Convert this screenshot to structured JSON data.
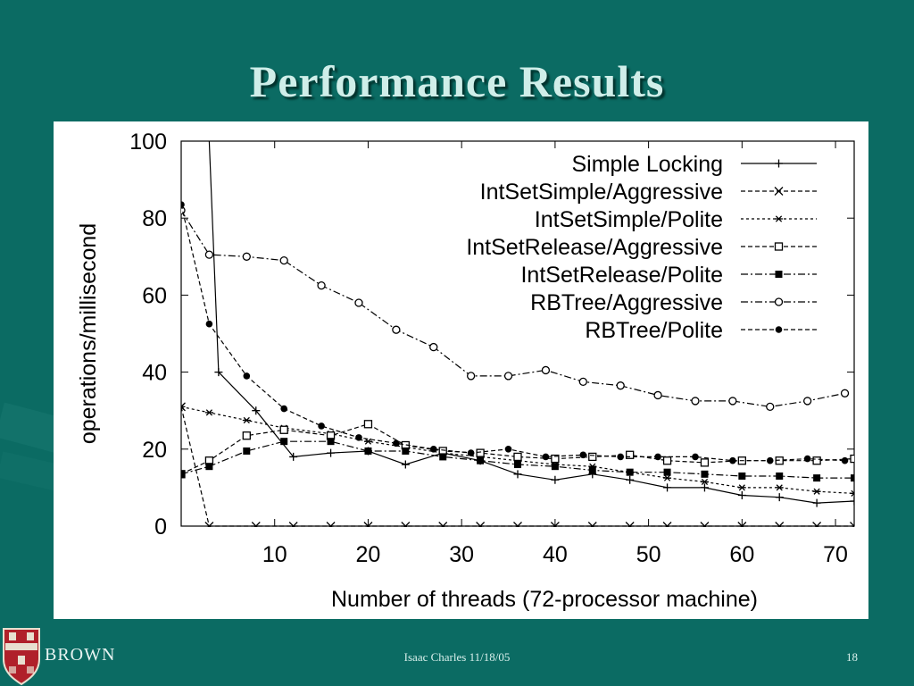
{
  "slide": {
    "title": "Performance Results",
    "footer_center": "Isaac Charles 11/18/05",
    "footer_page": "18",
    "logo_text": "BROWN"
  },
  "colors": {
    "background": "#0b6b63",
    "title": "#cfeee9",
    "chart_bg": "#ffffff",
    "ink": "#000000"
  },
  "chart_data": {
    "type": "line",
    "title": "",
    "xlabel": "Number of threads (72-processor machine)",
    "ylabel": "operations/millisecond",
    "xlim": [
      0,
      72
    ],
    "ylim": [
      0,
      100
    ],
    "xticks": [
      10,
      20,
      30,
      40,
      50,
      60,
      70
    ],
    "yticks": [
      0,
      20,
      40,
      60,
      80,
      100
    ],
    "grid": false,
    "legend_position": "top-right",
    "series": [
      {
        "name": "Simple Locking",
        "marker": "plus",
        "dash": "solid",
        "x": [
          3,
          4,
          8,
          12,
          16,
          20,
          24,
          28,
          32,
          36,
          40,
          44,
          48,
          52,
          56,
          60,
          64,
          68,
          72
        ],
        "y": [
          100,
          40,
          30,
          18,
          19,
          19.5,
          16,
          19,
          17,
          13.5,
          12,
          13.5,
          12,
          10,
          10,
          8,
          7.5,
          6,
          6.5
        ]
      },
      {
        "name": "IntSetSimple/Aggressive",
        "marker": "x",
        "dash": "dashed",
        "x": [
          0,
          3,
          8,
          12,
          16,
          20,
          24,
          28,
          32,
          36,
          40,
          44,
          48,
          52,
          56,
          60,
          64,
          68,
          72
        ],
        "y": [
          31,
          0,
          0,
          0,
          0,
          0,
          0,
          0,
          0,
          0,
          0,
          0,
          0,
          0,
          0,
          0,
          0,
          0,
          0
        ]
      },
      {
        "name": "IntSetSimple/Polite",
        "marker": "asterisk",
        "dash": "dotted",
        "x": [
          0,
          3,
          7,
          11,
          16,
          20,
          24,
          28,
          32,
          36,
          40,
          44,
          48,
          52,
          56,
          60,
          64,
          68,
          72
        ],
        "y": [
          31,
          29.5,
          27.5,
          25.5,
          24,
          22,
          20.5,
          19,
          18,
          17,
          16,
          15.5,
          14,
          12.5,
          11.5,
          10,
          10,
          9,
          8.5
        ]
      },
      {
        "name": "IntSetRelease/Aggressive",
        "marker": "open-square",
        "dash": "dashed",
        "x": [
          0,
          3,
          7,
          11,
          16,
          20,
          24,
          28,
          32,
          36,
          40,
          44,
          48,
          52,
          56,
          60,
          64,
          68,
          72
        ],
        "y": [
          13.5,
          17,
          23.5,
          25,
          23.5,
          26.5,
          21,
          19.5,
          19,
          18,
          17.5,
          18,
          18.5,
          17,
          16.5,
          17,
          17,
          17,
          17.5
        ]
      },
      {
        "name": "IntSetRelease/Polite",
        "marker": "filled-square",
        "dash": "dashdot",
        "x": [
          0,
          3,
          7,
          11,
          16,
          20,
          24,
          28,
          32,
          36,
          40,
          44,
          48,
          52,
          56,
          60,
          64,
          68,
          72
        ],
        "y": [
          13.5,
          15.5,
          19.5,
          22,
          22,
          19.5,
          19.5,
          18,
          17,
          16,
          15.5,
          14.5,
          14,
          14,
          13.5,
          13,
          13,
          12.5,
          12.5
        ]
      },
      {
        "name": "RBTree/Aggressive",
        "marker": "open-circle",
        "dash": "dashdot",
        "x": [
          0,
          3,
          7,
          11,
          15,
          19,
          23,
          27,
          31,
          35,
          39,
          43,
          47,
          51,
          55,
          59,
          63,
          67,
          71
        ],
        "y": [
          82,
          70.5,
          70,
          69,
          62.5,
          58,
          51,
          46.5,
          39,
          39,
          40.5,
          37.5,
          36.5,
          34,
          32.5,
          32.5,
          31,
          32.5,
          34.5
        ]
      },
      {
        "name": "RBTree/Polite",
        "marker": "filled-circle",
        "dash": "dashed",
        "x": [
          0,
          3,
          7,
          11,
          15,
          19,
          23,
          27,
          31,
          35,
          39,
          43,
          47,
          51,
          55,
          59,
          63,
          67,
          71
        ],
        "y": [
          83.5,
          52.5,
          39,
          30.5,
          26,
          23,
          21.5,
          20,
          19,
          20,
          18,
          18.5,
          18,
          18,
          18,
          17,
          17,
          17.5,
          17
        ]
      }
    ]
  }
}
